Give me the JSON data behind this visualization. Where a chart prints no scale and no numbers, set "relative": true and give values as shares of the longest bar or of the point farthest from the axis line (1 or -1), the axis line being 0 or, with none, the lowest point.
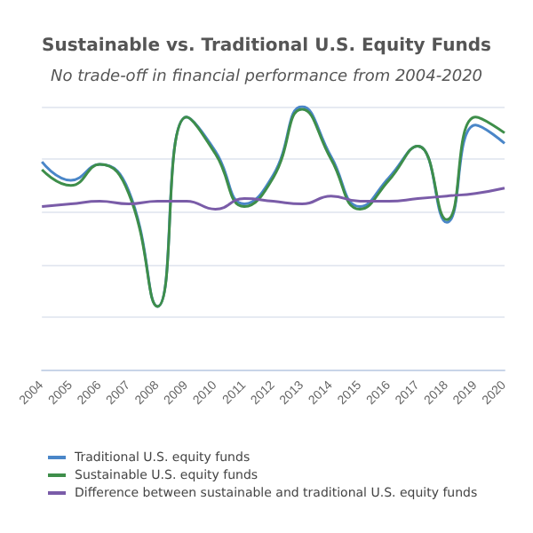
{
  "chart_data": {
    "type": "line",
    "title": "Sustainable vs. Traditional U.S. Equity Funds",
    "subtitle": "No trade-off in financial performance from 2004-2020",
    "relative": true,
    "categories": [
      "2004",
      "2005",
      "2006",
      "2007",
      "2008",
      "2009",
      "2010",
      "2011",
      "2012",
      "2013",
      "2014",
      "2015",
      "2016",
      "2017",
      "2018",
      "2019",
      "2020"
    ],
    "series": [
      {
        "name": "Traditional U.S. equity funds",
        "color": "#4a86c8",
        "values": [
          0.79,
          0.72,
          0.78,
          0.68,
          0.24,
          0.96,
          0.83,
          0.63,
          0.74,
          1.0,
          0.81,
          0.62,
          0.73,
          0.85,
          0.56,
          0.93,
          0.86
        ]
      },
      {
        "name": "Sustainable U.S. equity funds",
        "color": "#3e8e4a",
        "values": [
          0.76,
          0.7,
          0.78,
          0.67,
          0.24,
          0.96,
          0.82,
          0.62,
          0.73,
          0.99,
          0.8,
          0.61,
          0.72,
          0.85,
          0.57,
          0.96,
          0.9
        ]
      },
      {
        "name": "Difference between sustainable and traditional U.S. equity funds",
        "color": "#7a5ca8",
        "values": [
          0.62,
          0.63,
          0.64,
          0.63,
          0.64,
          0.64,
          0.61,
          0.65,
          0.64,
          0.63,
          0.66,
          0.64,
          0.64,
          0.65,
          0.66,
          0.67,
          0.69
        ]
      }
    ],
    "grid": "y",
    "legend": "bottom",
    "marker": "none",
    "line_style": "solid"
  }
}
